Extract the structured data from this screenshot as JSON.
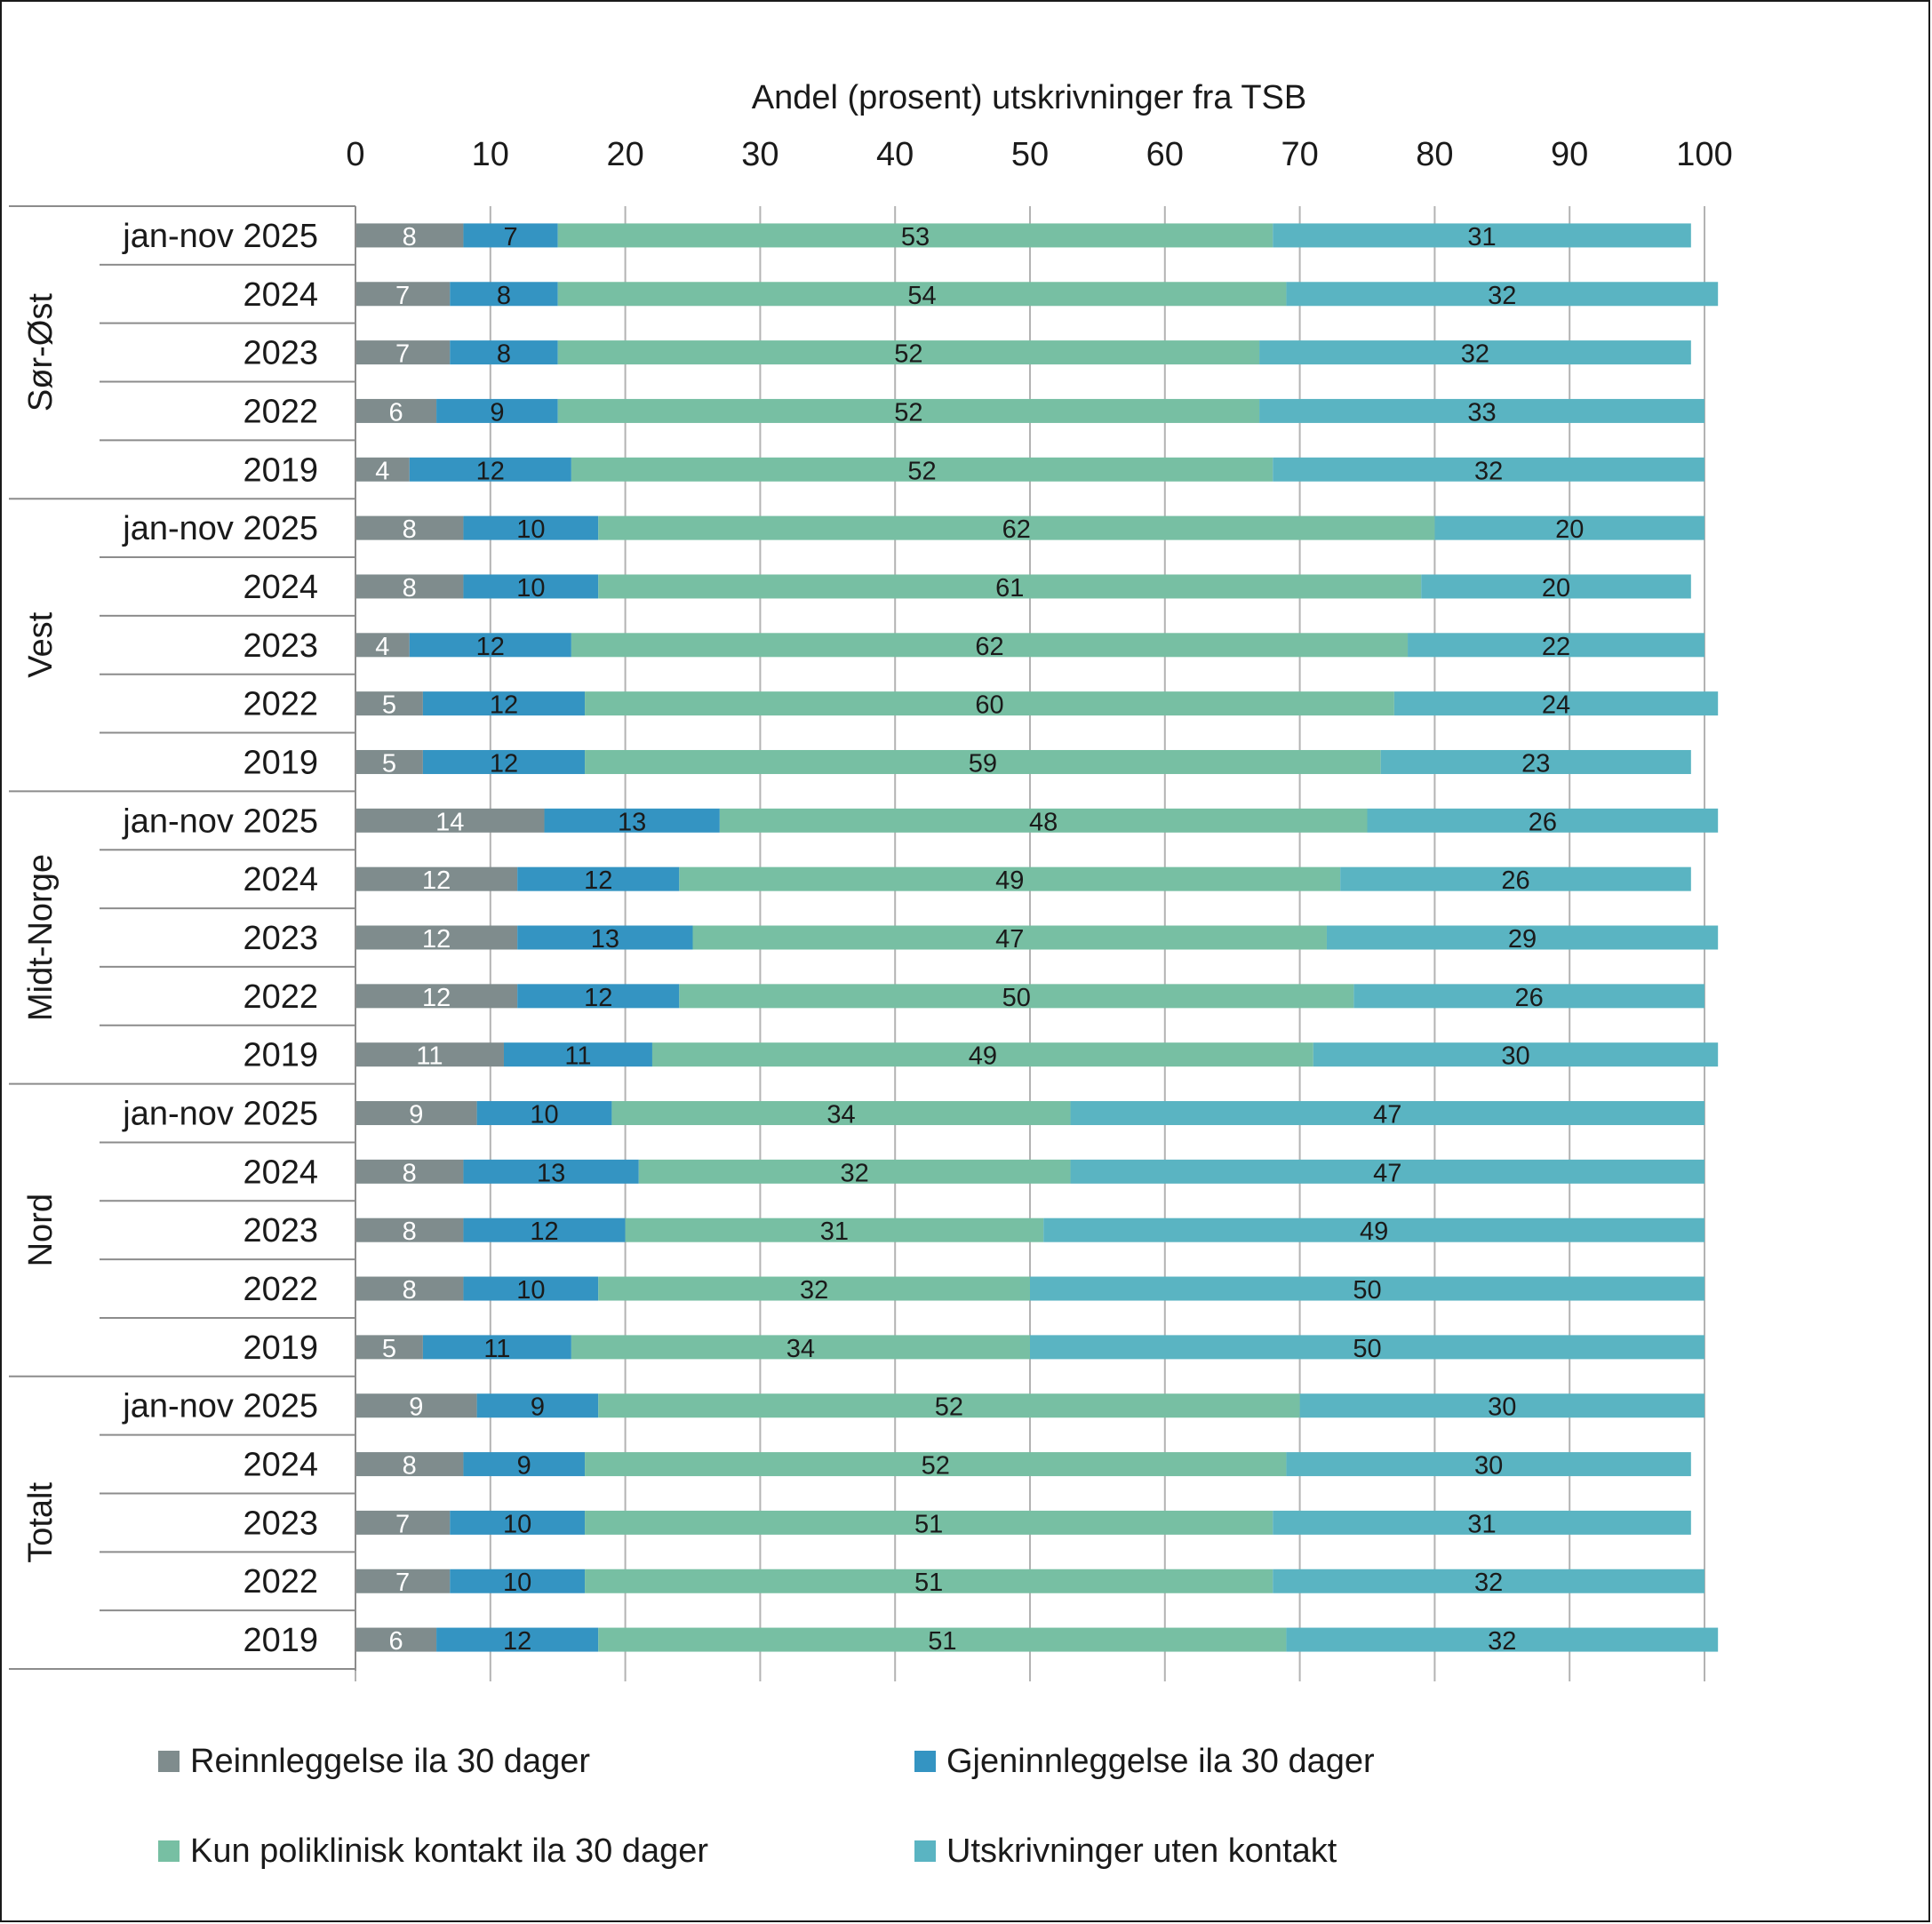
{
  "chart_data": {
    "type": "bar",
    "orientation": "horizontal",
    "stacked": true,
    "xlabel": "Andel (prosent)  utskrivninger fra TSB",
    "xlim": [
      0,
      100
    ],
    "xticks": [
      "0",
      "10",
      "20",
      "30",
      "40",
      "50",
      "60",
      "70",
      "80",
      "90",
      "100"
    ],
    "grid": true,
    "legend_position": "bottom",
    "groups": [
      {
        "name": "Sør-Øst",
        "rows": [
          {
            "label": "jan-nov 2025",
            "values": [
              8,
              7,
              53,
              31
            ]
          },
          {
            "label": "2024",
            "values": [
              7,
              8,
              54,
              32
            ]
          },
          {
            "label": "2023",
            "values": [
              7,
              8,
              52,
              32
            ]
          },
          {
            "label": "2022",
            "values": [
              6,
              9,
              52,
              33
            ]
          },
          {
            "label": "2019",
            "values": [
              4,
              12,
              52,
              32
            ]
          }
        ]
      },
      {
        "name": "Vest",
        "rows": [
          {
            "label": "jan-nov 2025",
            "values": [
              8,
              10,
              62,
              20
            ]
          },
          {
            "label": "2024",
            "values": [
              8,
              10,
              61,
              20
            ]
          },
          {
            "label": "2023",
            "values": [
              4,
              12,
              62,
              22
            ]
          },
          {
            "label": "2022",
            "values": [
              5,
              12,
              60,
              24
            ]
          },
          {
            "label": "2019",
            "values": [
              5,
              12,
              59,
              23
            ]
          }
        ]
      },
      {
        "name": "Midt-Norge",
        "rows": [
          {
            "label": "jan-nov 2025",
            "values": [
              14,
              13,
              48,
              26
            ]
          },
          {
            "label": "2024",
            "values": [
              12,
              12,
              49,
              26
            ]
          },
          {
            "label": "2023",
            "values": [
              12,
              13,
              47,
              29
            ]
          },
          {
            "label": "2022",
            "values": [
              12,
              12,
              50,
              26
            ]
          },
          {
            "label": "2019",
            "values": [
              11,
              11,
              49,
              30
            ]
          }
        ]
      },
      {
        "name": "Nord",
        "rows": [
          {
            "label": "jan-nov 2025",
            "values": [
              9,
              10,
              34,
              47
            ]
          },
          {
            "label": "2024",
            "values": [
              8,
              13,
              32,
              47
            ]
          },
          {
            "label": "2023",
            "values": [
              8,
              12,
              31,
              49
            ]
          },
          {
            "label": "2022",
            "values": [
              8,
              10,
              32,
              50
            ]
          },
          {
            "label": "2019",
            "values": [
              5,
              11,
              34,
              50
            ]
          }
        ]
      },
      {
        "name": "Totalt",
        "rows": [
          {
            "label": "jan-nov 2025",
            "values": [
              9,
              9,
              52,
              30
            ]
          },
          {
            "label": "2024",
            "values": [
              8,
              9,
              52,
              30
            ]
          },
          {
            "label": "2023",
            "values": [
              7,
              10,
              51,
              31
            ]
          },
          {
            "label": "2022",
            "values": [
              7,
              10,
              51,
              32
            ]
          },
          {
            "label": "2019",
            "values": [
              6,
              12,
              51,
              32
            ]
          }
        ]
      }
    ],
    "series": [
      {
        "name": "Reinnleggelse ila 30 dager",
        "color": "#7f8c8d",
        "label_color": "#ffffff"
      },
      {
        "name": "Gjeninnleggelse ila 30 dager",
        "color": "#3494c2",
        "label_color": "#1a1a1a"
      },
      {
        "name": "Kun poliklinisk kontakt ila 30 dager",
        "color": "#77bfa3",
        "label_color": "#1a1a1a"
      },
      {
        "name": "Utskrivninger uten kontakt",
        "color": "#5ab4c2",
        "label_color": "#1a1a1a"
      }
    ]
  }
}
